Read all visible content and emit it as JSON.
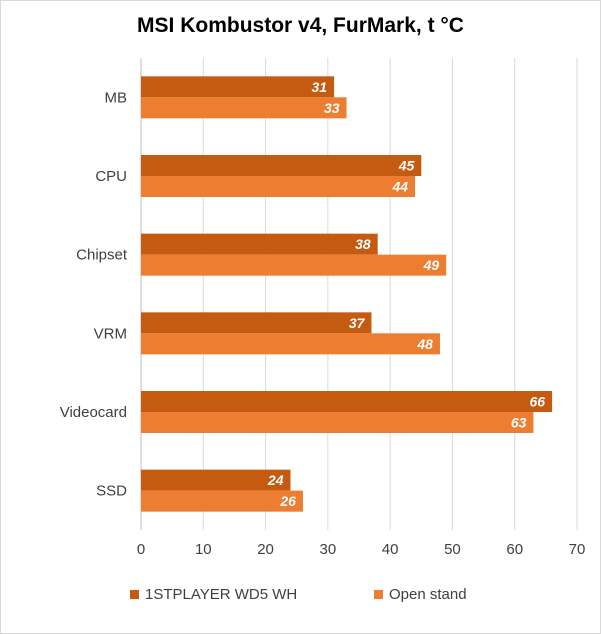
{
  "chart_data": {
    "type": "bar",
    "orientation": "horizontal",
    "title": "MSI Kombustor v4, FurMark, t °C",
    "categories": [
      "MB",
      "CPU",
      "Chipset",
      "VRM",
      "Videocard",
      "SSD"
    ],
    "series": [
      {
        "name": "1STPLAYER WD5 WH",
        "color": "#c55a11",
        "values": [
          31,
          45,
          38,
          37,
          66,
          24
        ]
      },
      {
        "name": "Open stand",
        "color": "#ed7d31",
        "values": [
          33,
          44,
          49,
          48,
          63,
          26
        ]
      }
    ],
    "xlim": [
      0,
      70
    ],
    "xticks": [
      0,
      10,
      20,
      30,
      40,
      50,
      60,
      70
    ],
    "grid": true,
    "legend_position": "bottom"
  }
}
